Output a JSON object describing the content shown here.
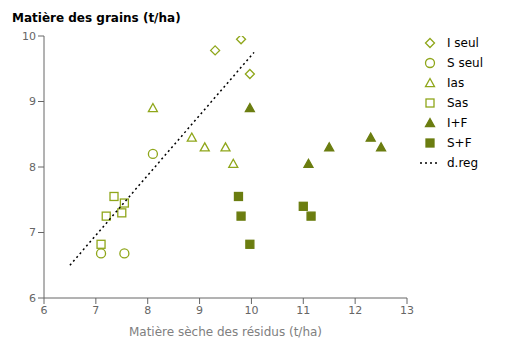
{
  "chart_data": {
    "type": "scatter",
    "ylabel": "Matière des grains (t/ha)",
    "xlabel": "Matière sèche des résidus (t/ha)",
    "xlim": [
      6,
      13
    ],
    "ylim": [
      6,
      10
    ],
    "xticks": [
      6,
      7,
      8,
      9,
      10,
      11,
      12,
      13
    ],
    "yticks": [
      6,
      7,
      8,
      9,
      10
    ],
    "grid": false,
    "legend": "right",
    "series": [
      {
        "name": "I seul",
        "type": "scatter",
        "marker": "diamond_open",
        "color": "#8fa61a",
        "x": [
          9.3,
          9.8,
          9.97
        ],
        "values": [
          9.78,
          9.95,
          9.42
        ]
      },
      {
        "name": "S seul",
        "type": "scatter",
        "marker": "circle_open",
        "color": "#8fa61a",
        "x": [
          7.1,
          7.55,
          8.1
        ],
        "values": [
          6.68,
          6.68,
          8.2
        ]
      },
      {
        "name": "Ias",
        "type": "scatter",
        "marker": "triangle_open",
        "color": "#8fa61a",
        "x": [
          8.1,
          8.85,
          9.1,
          9.5,
          9.65
        ],
        "values": [
          8.9,
          8.45,
          8.3,
          8.3,
          8.05
        ]
      },
      {
        "name": "Sas",
        "type": "scatter",
        "marker": "square_open",
        "color": "#8fa61a",
        "x": [
          7.1,
          7.2,
          7.35,
          7.5,
          7.55
        ],
        "values": [
          6.82,
          7.25,
          7.55,
          7.3,
          7.45
        ]
      },
      {
        "name": "I+F",
        "type": "scatter",
        "marker": "triangle",
        "color": "#6b7d10",
        "x": [
          9.97,
          11.1,
          11.5,
          12.3,
          12.5
        ],
        "values": [
          8.9,
          8.05,
          8.3,
          8.45,
          8.3
        ]
      },
      {
        "name": "S+F",
        "type": "scatter",
        "marker": "square",
        "color": "#6b7d10",
        "x": [
          9.75,
          9.8,
          9.97,
          11.0,
          11.15
        ],
        "values": [
          7.55,
          7.25,
          6.82,
          7.4,
          7.25
        ]
      },
      {
        "name": "d.reg",
        "type": "line",
        "line_style": "dotted",
        "color": "#000000",
        "x": [
          6.5,
          10.05
        ],
        "values": [
          6.5,
          9.75
        ]
      }
    ]
  }
}
